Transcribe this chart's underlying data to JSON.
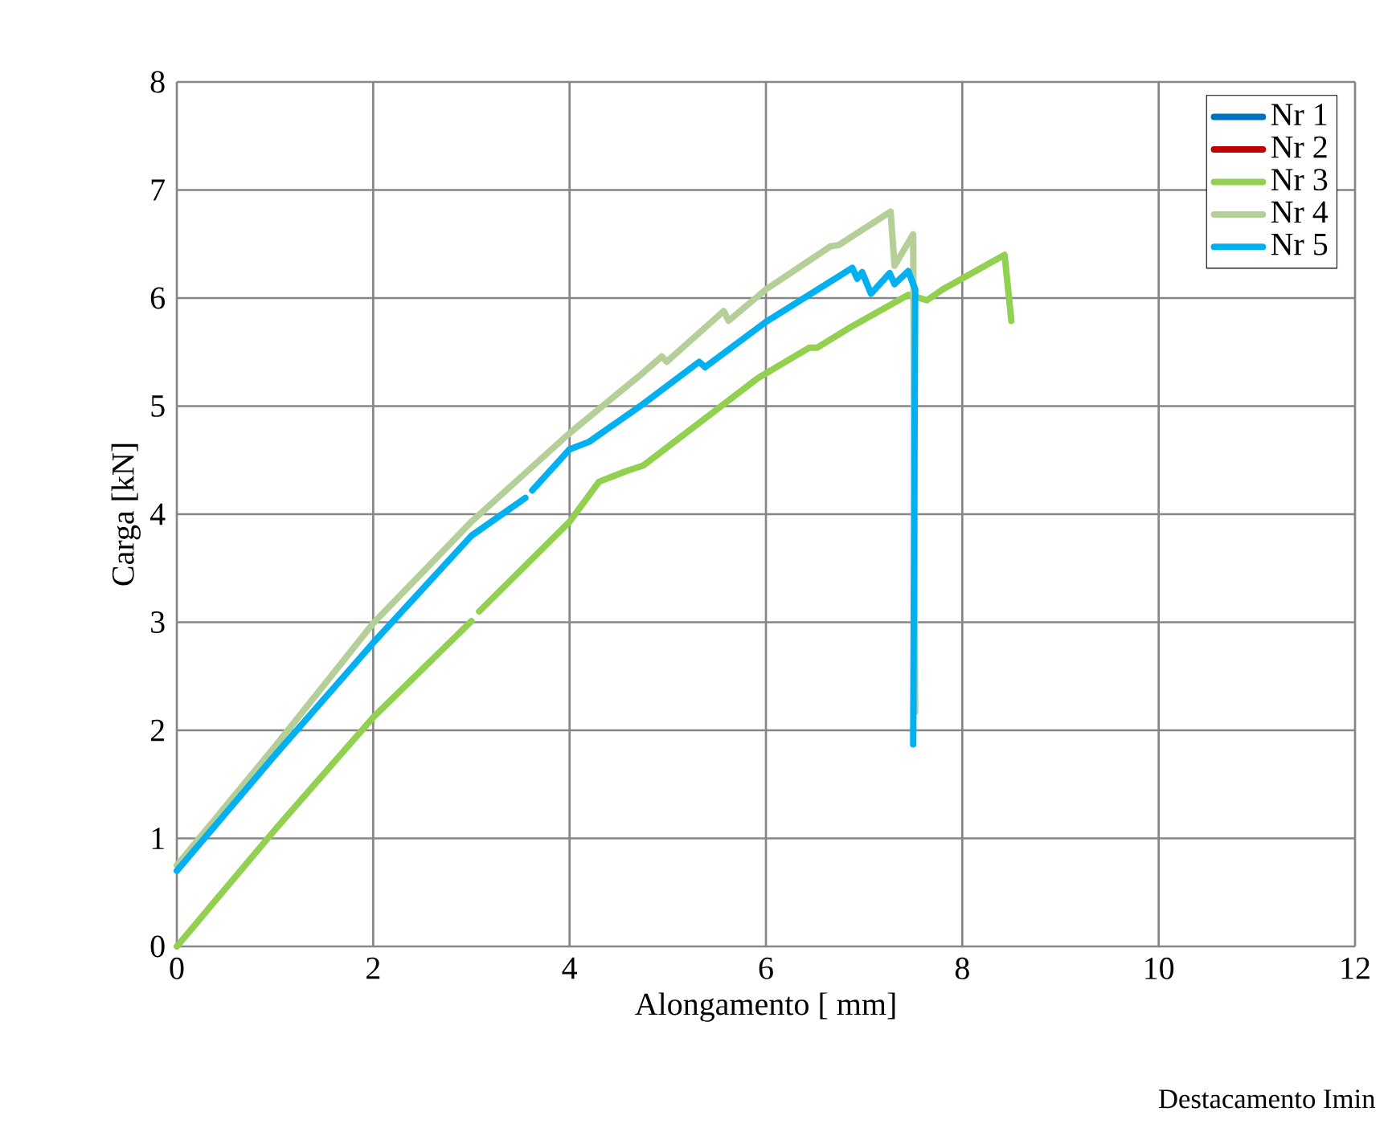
{
  "chart_data": {
    "type": "line",
    "xlabel": "Alongamento [ mm]",
    "ylabel": "Carga [kN]",
    "xlim": [
      0,
      12
    ],
    "xticks": [
      0,
      2,
      4,
      6,
      8,
      10,
      12
    ],
    "ylim": [
      0,
      8
    ],
    "yticks": [
      0,
      1,
      2,
      3,
      4,
      5,
      6,
      7,
      8
    ],
    "grid": true,
    "legend": "top right",
    "line_style": "solid",
    "annotations": [
      "Destacamento Imin"
    ],
    "series": [
      {
        "name": "Nr 1",
        "color": "#0070c0"
      },
      {
        "name": "Nr 2",
        "color": "#c00000"
      },
      {
        "name": "Nr 3",
        "color": "#92d050",
        "x": [
          0,
          1,
          2,
          3.0,
          3.04,
          3.08,
          4,
          4.3,
          4.58,
          4.75,
          5.92,
          6.44,
          6.52,
          6.88,
          7.45,
          7.64,
          7.8,
          8.43,
          8.5
        ],
        "values": [
          0,
          1.08,
          2.12,
          3.01,
          null,
          3.1,
          3.93,
          4.3,
          4.4,
          4.45,
          5.26,
          5.54,
          5.54,
          5.74,
          6.03,
          5.98,
          6.08,
          6.4,
          5.79
        ]
      },
      {
        "name": "Nr 4",
        "color": "#b4cf98",
        "x": [
          0,
          1,
          2,
          3,
          4,
          4.75,
          4.94,
          4.99,
          5.57,
          5.62,
          6.0,
          6.66,
          6.74,
          7.27,
          7.31,
          7.5,
          7.52
        ],
        "values": [
          0.75,
          1.85,
          2.99,
          3.93,
          4.75,
          5.31,
          5.46,
          5.41,
          5.88,
          5.79,
          6.08,
          6.48,
          6.49,
          6.8,
          6.3,
          6.59,
          2.17
        ]
      },
      {
        "name": "Nr 5",
        "color": "#00b0f0",
        "x": [
          0,
          1,
          2,
          3,
          3.55,
          3.58,
          3.62,
          4,
          4.2,
          4.75,
          5.32,
          5.38,
          6.0,
          6.88,
          6.93,
          6.98,
          7.07,
          7.26,
          7.31,
          7.45,
          7.52,
          7.5
        ],
        "values": [
          0.7,
          1.77,
          2.81,
          3.8,
          4.15,
          null,
          4.22,
          4.6,
          4.67,
          5.02,
          5.41,
          5.36,
          5.78,
          6.28,
          6.18,
          6.24,
          6.04,
          6.23,
          6.13,
          6.25,
          6.08,
          1.87
        ]
      }
    ]
  }
}
